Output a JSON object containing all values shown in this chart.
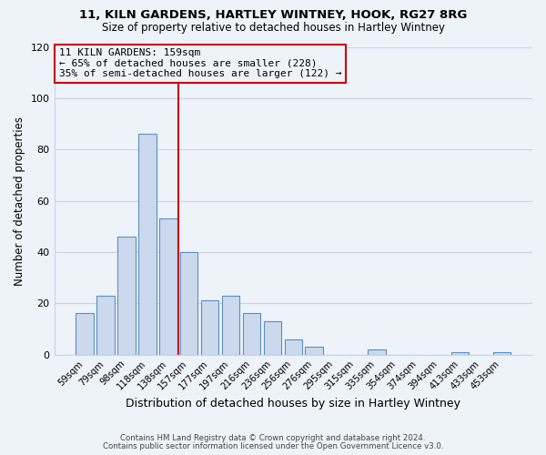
{
  "title_line1": "11, KILN GARDENS, HARTLEY WINTNEY, HOOK, RG27 8RG",
  "title_line2": "Size of property relative to detached houses in Hartley Wintney",
  "xlabel": "Distribution of detached houses by size in Hartley Wintney",
  "ylabel": "Number of detached properties",
  "bar_labels": [
    "59sqm",
    "79sqm",
    "98sqm",
    "118sqm",
    "138sqm",
    "157sqm",
    "177sqm",
    "197sqm",
    "216sqm",
    "236sqm",
    "256sqm",
    "276sqm",
    "295sqm",
    "315sqm",
    "335sqm",
    "354sqm",
    "374sqm",
    "394sqm",
    "413sqm",
    "433sqm",
    "453sqm"
  ],
  "bar_values": [
    16,
    23,
    46,
    86,
    53,
    40,
    21,
    23,
    16,
    13,
    6,
    3,
    0,
    0,
    2,
    0,
    0,
    0,
    1,
    0,
    1
  ],
  "bar_color": "#ccd9ed",
  "bar_edgecolor": "#5a8fc0",
  "highlight_index": 4.5,
  "highlight_line_color": "#cc0000",
  "annotation_line1": "11 KILN GARDENS: 159sqm",
  "annotation_line2": "← 65% of detached houses are smaller (228)",
  "annotation_line3": "35% of semi-detached houses are larger (122) →",
  "annotation_box_edgecolor": "#cc0000",
  "ylim": [
    0,
    120
  ],
  "yticks": [
    0,
    20,
    40,
    60,
    80,
    100,
    120
  ],
  "grid_color": "#c8d4e8",
  "footer_line1": "Contains HM Land Registry data © Crown copyright and database right 2024.",
  "footer_line2": "Contains public sector information licensed under the Open Government Licence v3.0.",
  "background_color": "#eef2f9"
}
